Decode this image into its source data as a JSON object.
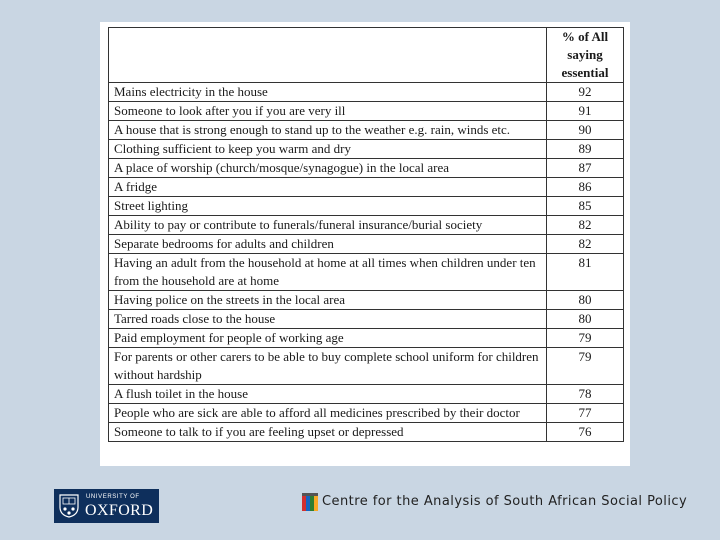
{
  "table": {
    "header": {
      "line1": "% of All",
      "line2": "saying",
      "line3": "essential"
    },
    "rows": [
      {
        "label": "Mains electricity in the house",
        "value": "92"
      },
      {
        "label": "Someone to look after you if you are very ill",
        "value": "91"
      },
      {
        "label": "A house that is strong enough to stand up to the weather e.g. rain, winds etc.",
        "value": "90"
      },
      {
        "label": "Clothing sufficient to keep you warm and dry",
        "value": "89"
      },
      {
        "label": "A place of worship (church/mosque/synagogue) in the local area",
        "value": "87"
      },
      {
        "label": "A fridge",
        "value": "86"
      },
      {
        "label": "Street lighting",
        "value": "85"
      },
      {
        "label": "Ability to pay or contribute to funerals/funeral insurance/burial society",
        "value": "82"
      },
      {
        "label": "Separate bedrooms for adults and children",
        "value": "82"
      },
      {
        "label": "Having an adult from the household at home at all times when children under ten from the household are at home",
        "value": "81"
      },
      {
        "label": "Having police on the streets in the local area",
        "value": "80"
      },
      {
        "label": "Tarred roads close to the house",
        "value": "80"
      },
      {
        "label": "Paid employment for people of working age",
        "value": "79"
      },
      {
        "label": "For parents or other carers to be able to buy complete school uniform for children without hardship",
        "value": "79"
      },
      {
        "label": "A flush toilet in the house",
        "value": "78"
      },
      {
        "label": "People who are sick are able to afford all medicines prescribed by their doctor",
        "value": "77"
      },
      {
        "label": "Someone to talk to if you are feeling upset or depressed",
        "value": "76"
      }
    ]
  },
  "footer": {
    "oxford_top": "UNIVERSITY OF",
    "oxford_name": "OXFORD",
    "centre_name": "Centre for the Analysis of South African Social Policy"
  },
  "colors": {
    "background": "#c9d6e3",
    "oxford_blue": "#0e2f5c"
  }
}
